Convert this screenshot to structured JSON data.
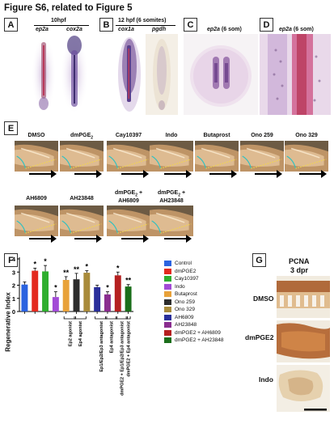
{
  "figure": {
    "title": "Figure S6, related to Figure 5"
  },
  "panels": {
    "A": {
      "label": "A",
      "stage": "10hpf",
      "genes": [
        "ep2a",
        "cox2a"
      ]
    },
    "B": {
      "label": "B",
      "stage": "12 hpf (6 somites)",
      "genes": [
        "cox1a",
        "pgdh"
      ]
    },
    "C": {
      "label": "C",
      "caption_gene": "ep2a",
      "caption_rest": " (6 som)"
    },
    "D": {
      "label": "D",
      "caption_gene": "ep2a",
      "caption_rest": " (6 som)"
    },
    "E": {
      "label": "E",
      "row1": [
        "DMSO",
        "dmPGE2",
        "Cay10397",
        "Indo",
        "Butaprost",
        "Ono 259",
        "Ono 329"
      ],
      "row2": [
        "AH6809",
        "AH23848",
        "dmPGE2 + AH6809",
        "dmPGE2 + AH23848"
      ]
    },
    "F": {
      "label": "F"
    },
    "G": {
      "label": "G",
      "title_line1": "PCNA",
      "title_line2": "3 dpr",
      "rows": [
        "DMSO",
        "dmPGE2",
        "Indo"
      ]
    }
  },
  "colors": {
    "stain_purple": "#6a4c9c",
    "stain_red": "#b8385a",
    "tissue_brown": "#a5531e",
    "tail_bg": "#6d5b44",
    "dotted_outline": "#f3d64b",
    "cut_line": "#33c0c0"
  },
  "chart_data": {
    "type": "bar",
    "ylabel": "Regenerative Index",
    "ylim": [
      0,
      4
    ],
    "yticks": [
      "0",
      "1",
      "2",
      "3",
      "4"
    ],
    "categories": [
      "Control",
      "dmPGE2",
      "Cay10397",
      "Indo",
      "Butaprost",
      "Ono 259",
      "Ono 329",
      "AH6809",
      "AH23848",
      "dmPGE2 + AH6809",
      "dmPGE2 + AH23848"
    ],
    "values": [
      2.05,
      3.1,
      3.05,
      1.1,
      2.4,
      2.45,
      2.95,
      1.85,
      1.3,
      2.75,
      1.9
    ],
    "errors": [
      0.2,
      0.2,
      0.45,
      0.4,
      0.25,
      0.45,
      0.15,
      0.15,
      0.2,
      0.25,
      0.15
    ],
    "colors": [
      "#2b63e0",
      "#e32a1f",
      "#2fae2f",
      "#a24bd6",
      "#e8a23a",
      "#2d2d2d",
      "#a98b3b",
      "#2a2f9a",
      "#8a2d8f",
      "#b52020",
      "#1a6e1a"
    ],
    "significance": [
      "",
      "*",
      "*",
      "*",
      "**",
      "**",
      "*",
      "",
      "*",
      "*",
      "**"
    ],
    "group_labels": [
      "Ep2 agonist",
      "Ep4 agonist",
      "Ep1/Ep2/Ep3 antagonist",
      "Ep4 antagonist",
      "dmPGE2 + Ep1/Ep2/Ep3 antagonist",
      "dmPGE2 + Ep4 antagonist"
    ],
    "legend": [
      "Control",
      "dmPGE2",
      "Cay10397",
      "Indo",
      "Butaprost",
      "Ono 259",
      "Ono 329",
      "AH6809",
      "AH23848",
      "dmPGE2 + AH6809",
      "dmPGE2 + AH23848"
    ]
  }
}
